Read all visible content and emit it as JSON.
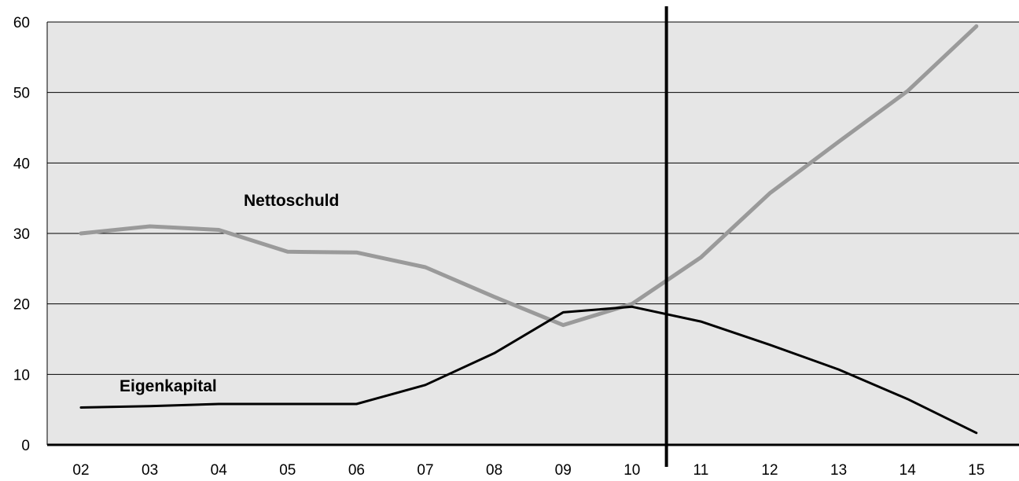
{
  "chart_data": {
    "type": "line",
    "title": "",
    "xlabel": "",
    "ylabel": "",
    "categories": [
      "02",
      "03",
      "04",
      "05",
      "06",
      "07",
      "08",
      "09",
      "10",
      "11",
      "12",
      "13",
      "14",
      "15"
    ],
    "ylim": [
      0,
      60
    ],
    "yticks": [
      "0",
      "10",
      "20",
      "30",
      "40",
      "50",
      "60"
    ],
    "grid": true,
    "series": [
      {
        "name": "Nettoschuld",
        "color": "#9a9a9a",
        "values": [
          30.0,
          31.0,
          30.5,
          27.4,
          27.3,
          25.2,
          21.0,
          17.0,
          20.0,
          26.6,
          35.7,
          43.0,
          50.2,
          59.4
        ]
      },
      {
        "name": "Eigenkapital",
        "color": "#000000",
        "values": [
          5.3,
          5.5,
          5.8,
          5.8,
          5.8,
          8.5,
          13.0,
          18.8,
          19.6,
          17.5,
          14.2,
          10.7,
          6.5,
          1.7
        ]
      }
    ],
    "vertical_marker_between": [
      "10",
      "11"
    ]
  }
}
